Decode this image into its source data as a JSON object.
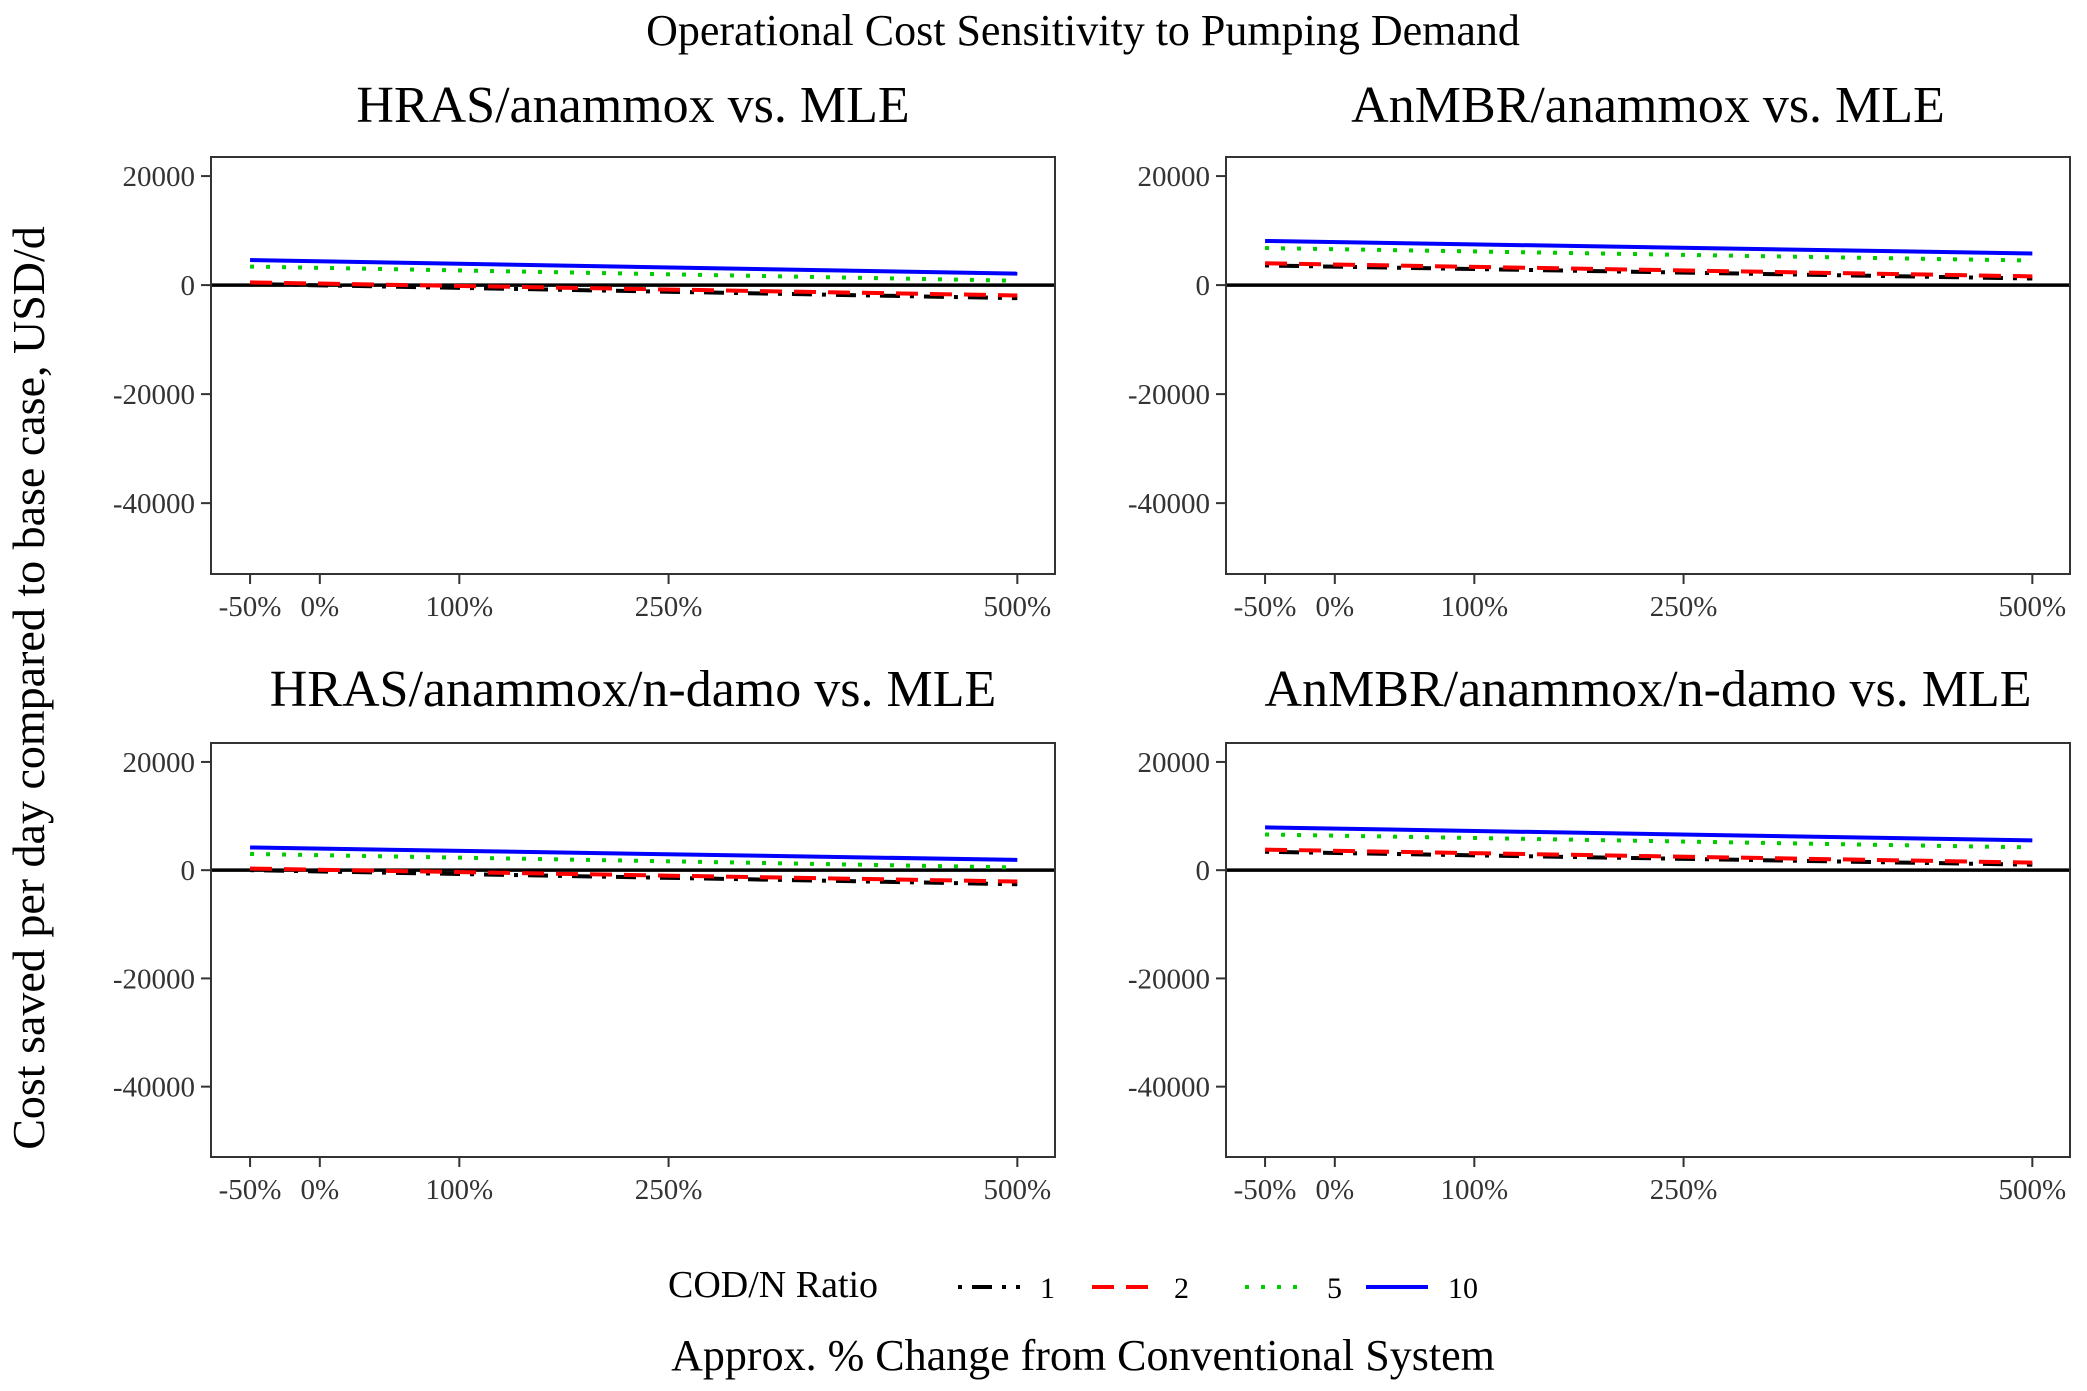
{
  "figure": {
    "title": "Operational Cost Sensitivity to Pumping Demand",
    "ylabel": "Cost saved per day compared to base case, USD/d",
    "xlabel": "Approx. % Change from Conventional System"
  },
  "legend": {
    "title": "COD/N Ratio",
    "placement": "bottom",
    "items": [
      {
        "label": "1",
        "color": "#000000",
        "dash": "dashdot"
      },
      {
        "label": "2",
        "color": "#ff0000",
        "dash": "dashed"
      },
      {
        "label": "5",
        "color": "#00cc00",
        "dash": "dotted"
      },
      {
        "label": "10",
        "color": "#0000ff",
        "dash": "solid"
      }
    ]
  },
  "chart_data": [
    {
      "type": "line",
      "title": "HRAS/anammox vs. MLE",
      "x": [
        -50,
        500
      ],
      "xticks": [
        -50,
        0,
        100,
        250,
        500
      ],
      "xtick_labels": [
        "-50%",
        "0%",
        "100%",
        "250%",
        "500%"
      ],
      "xlim": [
        -78,
        527
      ],
      "ylim": [
        -53000,
        23500
      ],
      "yticks": [
        20000,
        0,
        -20000,
        -40000
      ],
      "ytick_labels": [
        "20000",
        "0",
        "-20000",
        "-40000"
      ],
      "hline": 0,
      "grid": false,
      "series": [
        {
          "name": "1",
          "values": [
            200,
            -2400
          ]
        },
        {
          "name": "2",
          "values": [
            500,
            -1900
          ]
        },
        {
          "name": "5",
          "values": [
            3400,
            800
          ]
        },
        {
          "name": "10",
          "values": [
            4600,
            2100
          ]
        }
      ]
    },
    {
      "type": "line",
      "title": "AnMBR/anammox vs. MLE",
      "x": [
        -50,
        500
      ],
      "xticks": [
        -50,
        0,
        100,
        250,
        500
      ],
      "xtick_labels": [
        "-50%",
        "0%",
        "100%",
        "250%",
        "500%"
      ],
      "xlim": [
        -78,
        527
      ],
      "ylim": [
        -53000,
        23500
      ],
      "yticks": [
        20000,
        0,
        -20000,
        -40000
      ],
      "ytick_labels": [
        "20000",
        "0",
        "-20000",
        "-40000"
      ],
      "hline": 0,
      "grid": false,
      "series": [
        {
          "name": "1",
          "values": [
            3600,
            1200
          ]
        },
        {
          "name": "2",
          "values": [
            4000,
            1600
          ]
        },
        {
          "name": "5",
          "values": [
            6800,
            4500
          ]
        },
        {
          "name": "10",
          "values": [
            8100,
            5800
          ]
        }
      ]
    },
    {
      "type": "line",
      "title": "HRAS/anammox/n-damo vs. MLE",
      "x": [
        -50,
        500
      ],
      "xticks": [
        -50,
        0,
        100,
        250,
        500
      ],
      "xtick_labels": [
        "-50%",
        "0%",
        "100%",
        "250%",
        "500%"
      ],
      "xlim": [
        -78,
        527
      ],
      "ylim": [
        -53000,
        23500
      ],
      "yticks": [
        20000,
        0,
        -20000,
        -40000
      ],
      "ytick_labels": [
        "20000",
        "0",
        "-20000",
        "-40000"
      ],
      "hline": 0,
      "grid": false,
      "series": [
        {
          "name": "1",
          "values": [
            0,
            -2600
          ]
        },
        {
          "name": "2",
          "values": [
            300,
            -2100
          ]
        },
        {
          "name": "5",
          "values": [
            3000,
            500
          ]
        },
        {
          "name": "10",
          "values": [
            4200,
            1900
          ]
        }
      ]
    },
    {
      "type": "line",
      "title": "AnMBR/anammox/n-damo vs. MLE",
      "x": [
        -50,
        500
      ],
      "xticks": [
        -50,
        0,
        100,
        250,
        500
      ],
      "xtick_labels": [
        "-50%",
        "0%",
        "100%",
        "250%",
        "500%"
      ],
      "xlim": [
        -78,
        527
      ],
      "ylim": [
        -53000,
        23500
      ],
      "yticks": [
        20000,
        0,
        -20000,
        -40000
      ],
      "ytick_labels": [
        "20000",
        "0",
        "-20000",
        "-40000"
      ],
      "hline": 0,
      "grid": false,
      "series": [
        {
          "name": "1",
          "values": [
            3400,
            1000
          ]
        },
        {
          "name": "2",
          "values": [
            3800,
            1400
          ]
        },
        {
          "name": "5",
          "values": [
            6600,
            4200
          ]
        },
        {
          "name": "10",
          "values": [
            7900,
            5500
          ]
        }
      ]
    }
  ]
}
